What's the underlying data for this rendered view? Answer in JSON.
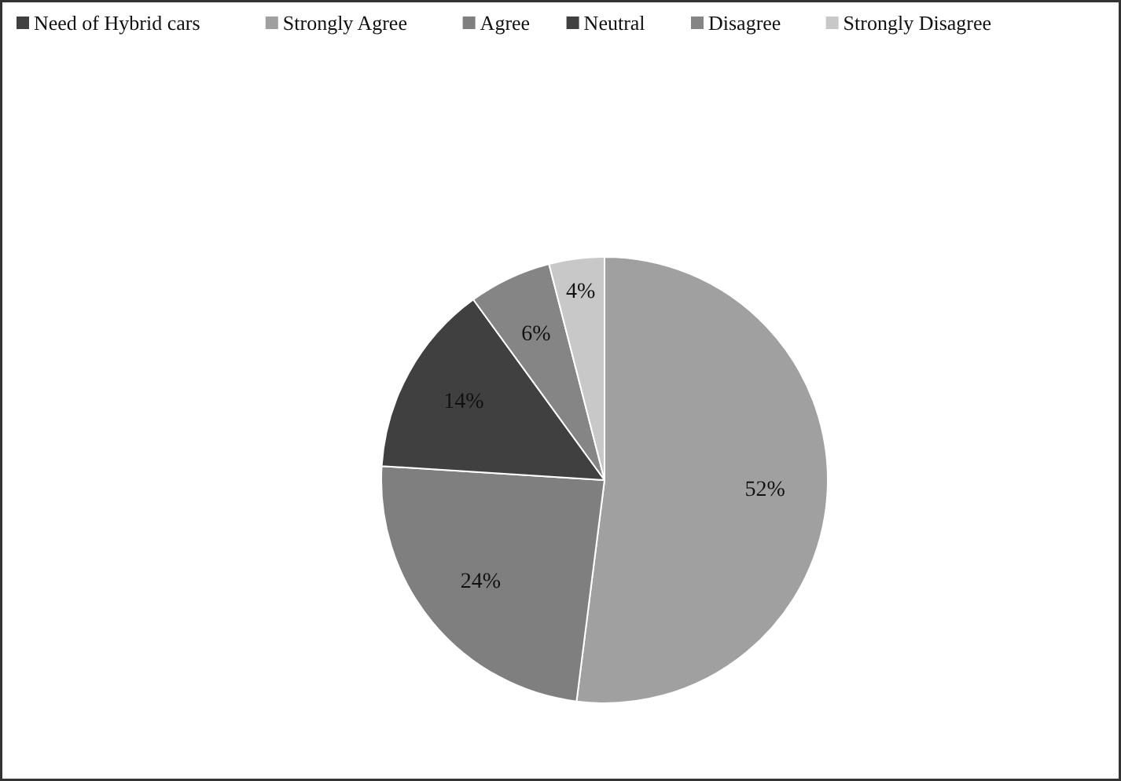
{
  "chart_data": {
    "type": "pie",
    "categories": [
      "Strongly Agree",
      "Agree",
      "Neutral",
      "Disagree",
      "Strongly Disagree"
    ],
    "series": [
      {
        "name": "Need of Hybrid cars",
        "color": "#404040",
        "values": [
          52,
          24,
          14,
          6,
          4
        ]
      }
    ],
    "colors": [
      "#a0a0a0",
      "#7f7f7f",
      "#404040",
      "#858585",
      "#c8c8c8"
    ],
    "value_labels": [
      "52%",
      "24%",
      "14%",
      "6%",
      "4%"
    ],
    "legend": "top"
  }
}
